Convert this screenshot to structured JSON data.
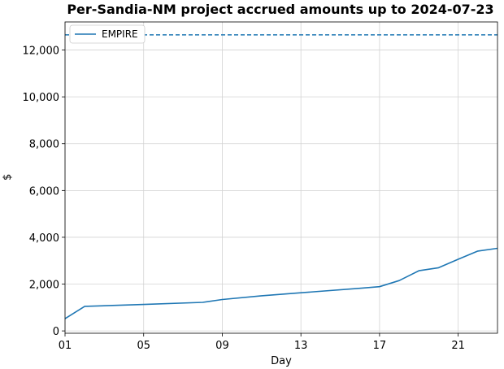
{
  "chart_data": {
    "type": "line",
    "title": "Per-Sandia-NM project accrued amounts up to 2024-07-23",
    "xlabel": "Day",
    "ylabel": "$",
    "x_ticks": [
      "01",
      "05",
      "09",
      "13",
      "17",
      "21"
    ],
    "xlim": [
      1,
      23
    ],
    "ylim": [
      -100,
      13200
    ],
    "y_ticks": [
      0,
      2000,
      4000,
      6000,
      8000,
      10000,
      12000
    ],
    "y_tick_labels": [
      "0",
      "2,000",
      "4,000",
      "6,000",
      "8,000",
      "10,000",
      "12,000"
    ],
    "grid": true,
    "legend_position": "top-left",
    "series": [
      {
        "name": "EMPIRE",
        "color": "#1f77b4",
        "x": [
          1,
          2,
          5,
          8,
          9,
          11,
          13,
          16,
          17,
          18,
          19,
          20,
          21,
          22,
          23
        ],
        "values": [
          520,
          1050,
          1130,
          1220,
          1340,
          1500,
          1630,
          1820,
          1890,
          2150,
          2570,
          2700,
          3060,
          3410,
          3530
        ]
      }
    ],
    "reference_lines": [
      {
        "value": 12650,
        "style": "dashed",
        "color": "#1f77b4"
      }
    ]
  }
}
